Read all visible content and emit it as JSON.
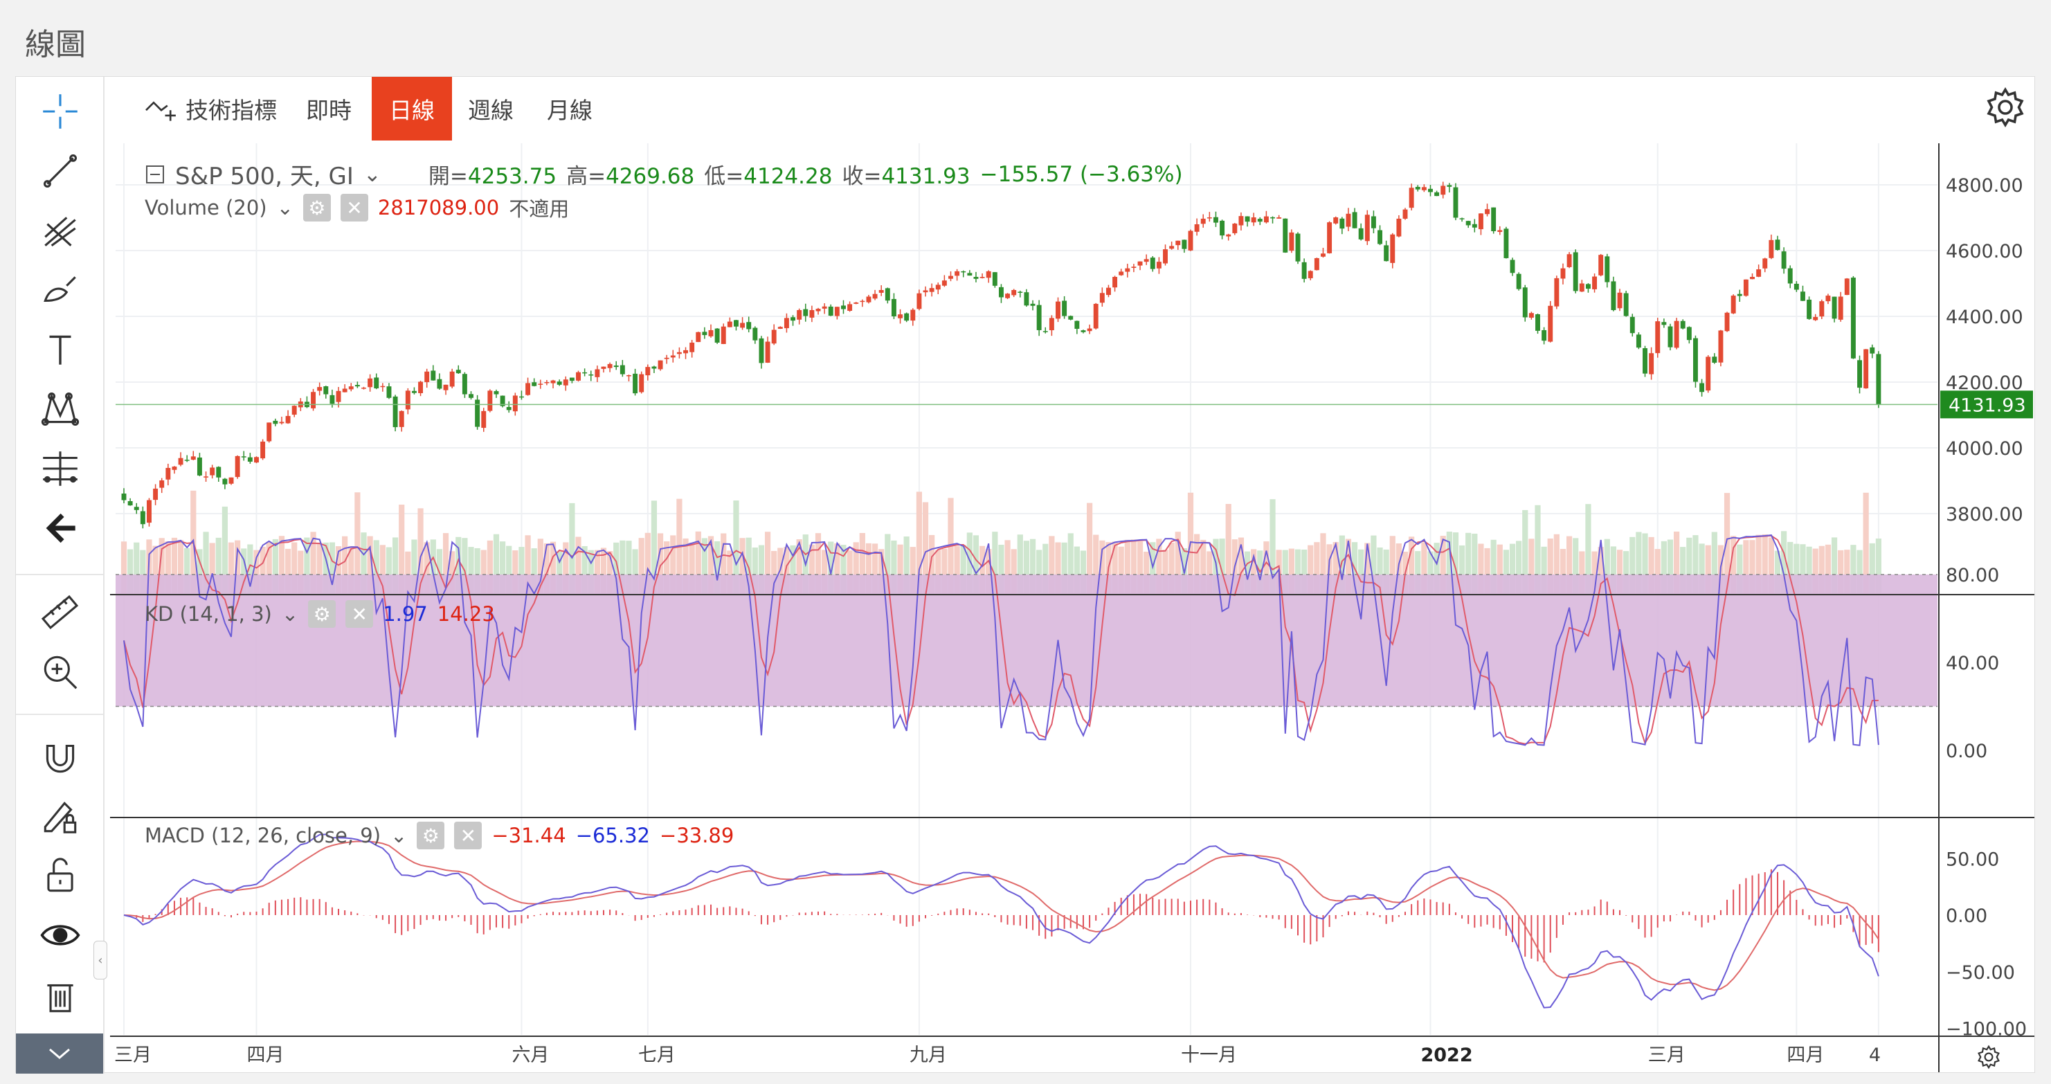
{
  "page_title": "線圖",
  "tabs": [
    {
      "label": "技術指標"
    },
    {
      "label": "即時"
    },
    {
      "label": "日線",
      "active": true
    },
    {
      "label": "週線"
    },
    {
      "label": "月線"
    }
  ],
  "main_legend": {
    "symbol": "S&P 500, 天, GI",
    "open_label": "開=",
    "open": "4253.75",
    "high_label": "高=",
    "high": "4269.68",
    "low_label": "低=",
    "low": "4124.28",
    "close_label": "收=",
    "close": "4131.93",
    "change": "−155.57 (−3.63%)"
  },
  "volume_legend": {
    "title": "Volume (20)",
    "value": "2817089.00",
    "ma_text": "不適用"
  },
  "kd_legend": {
    "title": "KD (14, 1, 3)",
    "k": "1.97",
    "d": "14.23"
  },
  "macd_legend": {
    "title": "MACD (12, 26, close, 9)",
    "hist": "−31.44",
    "macd": "−65.32",
    "signal": "−33.89"
  },
  "price_axis": [
    "4800.00",
    "4600.00",
    "4400.00",
    "4200.00",
    "4000.00",
    "3800.00"
  ],
  "last_price_label": "4131.93",
  "kd_axis": [
    "80.00",
    "40.00",
    "0.00"
  ],
  "macd_axis": [
    "50.00",
    "0.00",
    "−50.00",
    "−100.00"
  ],
  "x_axis_labels": [
    "三月",
    "四月",
    "六月",
    "七月",
    "九月",
    "十一月",
    "2022",
    "三月",
    "四月",
    "4"
  ],
  "colors": {
    "up": "#e34a33",
    "down": "#2f8f2f",
    "kd_k": "#6a5bd6",
    "kd_d": "#e05a6a",
    "kd_band": "#d9b8dd",
    "accent": "#e8411f"
  },
  "chart_data": [
    {
      "type": "candlestick",
      "title": "S&P 500, 天, GI",
      "x_range": [
        "2021-03",
        "2022-04"
      ],
      "ylim": [
        3700,
        4850
      ],
      "yticks": [
        3800,
        4000,
        4200,
        4400,
        4600,
        4800
      ],
      "last_close": 4131.93,
      "daily_closes": [
        3841,
        3825,
        3811,
        3768,
        3841,
        3876,
        3901,
        3939,
        3943,
        3969,
        3962,
        3974,
        3916,
        3913,
        3940,
        3910,
        3889,
        3910,
        3975,
        3971,
        3958,
        3972,
        4019,
        4077,
        4073,
        4079,
        4097,
        4128,
        4141,
        4124,
        4170,
        4185,
        4163,
        4134,
        4173,
        4180,
        4187,
        4187,
        4183,
        4211,
        4181,
        4188,
        4152,
        4063,
        4112,
        4174,
        4167,
        4201,
        4232,
        4205,
        4180,
        4192,
        4232,
        4227,
        4163,
        4152,
        4064,
        4112,
        4174,
        4163,
        4127,
        4115,
        4159,
        4155,
        4197,
        4188,
        4195,
        4200,
        4205,
        4192,
        4208,
        4204,
        4230,
        4227,
        4220,
        4239,
        4247,
        4255,
        4246,
        4224,
        4221,
        4166,
        4224,
        4246,
        4241,
        4266,
        4274,
        4281,
        4291,
        4297,
        4320,
        4352,
        4343,
        4358,
        4320,
        4369,
        4384,
        4369,
        4380,
        4361,
        4327,
        4258,
        4323,
        4359,
        4368,
        4395,
        4387,
        4419,
        4401,
        4419,
        4423,
        4430,
        4402,
        4429,
        4422,
        4437,
        4442,
        4447,
        4460,
        4468,
        4480,
        4448,
        4400,
        4406,
        4387,
        4420,
        4470,
        4479,
        4486,
        4496,
        4509,
        4523,
        4537,
        4535,
        4524,
        4514,
        4520,
        4537,
        4493,
        4458,
        4469,
        4480,
        4473,
        4433,
        4432,
        4358,
        4352,
        4395,
        4445,
        4401,
        4390,
        4362,
        4352,
        4363,
        4438,
        4471,
        4487,
        4520,
        4536,
        4546,
        4551,
        4567,
        4574,
        4544,
        4566,
        4604,
        4614,
        4630,
        4605,
        4660,
        4680,
        4697,
        4701,
        4685,
        4646,
        4649,
        4682,
        4705,
        4688,
        4701,
        4688,
        4704,
        4698,
        4701,
        4594,
        4655,
        4567,
        4514,
        4538,
        4577,
        4591,
        4686,
        4701,
        4667,
        4712,
        4668,
        4634,
        4709,
        4668,
        4620,
        4568,
        4649,
        4697,
        4725,
        4791,
        4786,
        4793,
        4778,
        4766,
        4797,
        4794,
        4700,
        4696,
        4677,
        4670,
        4713,
        4726,
        4659,
        4662,
        4577,
        4532,
        4483,
        4397,
        4410,
        4356,
        4326,
        4432,
        4516,
        4546,
        4589,
        4477,
        4500,
        4484,
        4521,
        4587,
        4504,
        4419,
        4472,
        4401,
        4349,
        4305,
        4226,
        4288,
        4385,
        4374,
        4306,
        4386,
        4363,
        4328,
        4201,
        4170,
        4277,
        4259,
        4357,
        4411,
        4463,
        4462,
        4512,
        4520,
        4543,
        4576,
        4632,
        4602,
        4545,
        4500,
        4481,
        4447,
        4392,
        4398,
        4446,
        4463,
        4393,
        4460,
        4515,
        4272,
        4183,
        4300,
        4287,
        4131.93
      ]
    },
    {
      "type": "bar",
      "title": "Volume (20)",
      "last_value": 2817089.0
    },
    {
      "type": "line",
      "title": "KD (14, 1, 3)",
      "ylim": [
        -5,
        105
      ],
      "yticks": [
        0,
        40,
        80
      ],
      "band": [
        20,
        80
      ],
      "series": [
        {
          "name": "K",
          "last": 1.97
        },
        {
          "name": "D",
          "last": 14.23
        }
      ]
    },
    {
      "type": "line",
      "title": "MACD (12, 26, close, 9)",
      "ylim": [
        -105,
        70
      ],
      "yticks": [
        50,
        0,
        -50,
        -100
      ],
      "series": [
        {
          "name": "MACD",
          "last": -65.32
        },
        {
          "name": "Signal",
          "last": -33.89
        },
        {
          "name": "Histogram",
          "last": -31.44
        }
      ]
    }
  ]
}
